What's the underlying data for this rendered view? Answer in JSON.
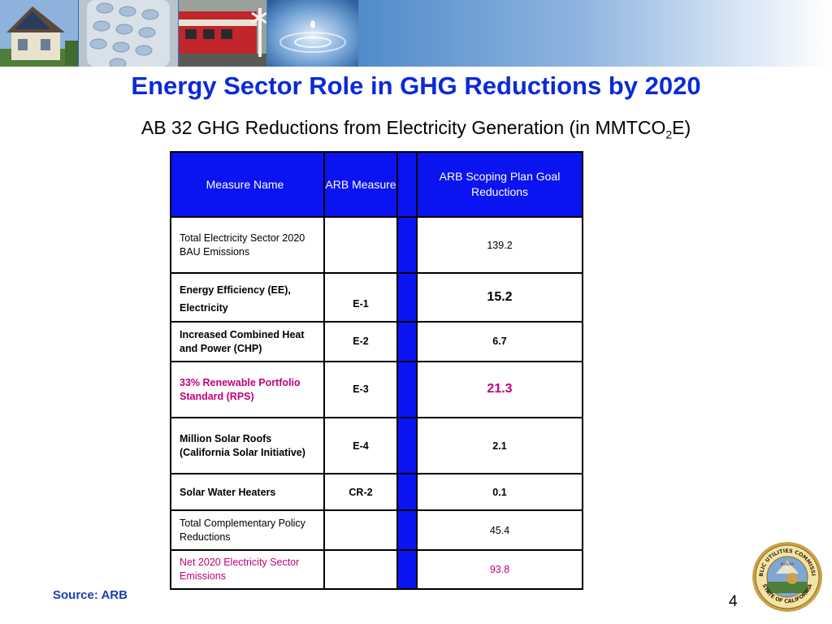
{
  "title": "Energy Sector Role in GHG Reductions by 2020",
  "subtitle": {
    "main": "AB 32 GHG Reductions from Electricity Generation (in MMTCO",
    "sub": "2",
    "end": "E)"
  },
  "table": {
    "headers": {
      "measure_name": "Measure Name",
      "arb_measure": "ARB Measure",
      "goal": "ARB Scoping Plan Goal Reductions"
    },
    "rows": [
      {
        "name": "Total Electricity Sector 2020 BAU Emissions",
        "measure": "",
        "value": "139.2"
      },
      {
        "name_line1": "Energy Efficiency (EE),",
        "name_line2": "Electricity",
        "measure": "E-1",
        "value": "15.2"
      },
      {
        "name": "Increased Combined Heat and Power (CHP)",
        "measure": "E-2",
        "value": "6.7"
      },
      {
        "name": "33% Renewable Portfolio Standard (RPS)",
        "measure": "E-3",
        "value": "21.3"
      },
      {
        "name": "Million Solar Roofs (California Solar Initiative)",
        "measure": "E-4",
        "value": "2.1"
      },
      {
        "name": "Solar Water Heaters",
        "measure": "CR-2",
        "value": "0.1"
      },
      {
        "name": "Total Complementary Policy Reductions",
        "measure": "",
        "value": "45.4"
      },
      {
        "name": "Net 2020 Electricity Sector Emissions",
        "measure": "",
        "value": "93.8"
      }
    ]
  },
  "source": "Source: ARB",
  "page_number": "4",
  "seal": {
    "top_text": "PUBLIC UTILITIES COMMISSION",
    "bottom_text": "STATE OF CALIFORNIA",
    "center_text": "EUREKA"
  },
  "colors": {
    "title": "#0b2bd6",
    "header_blue": "#0a14f0",
    "highlight_magenta": "#c0007a",
    "source": "#1a3fb0"
  }
}
